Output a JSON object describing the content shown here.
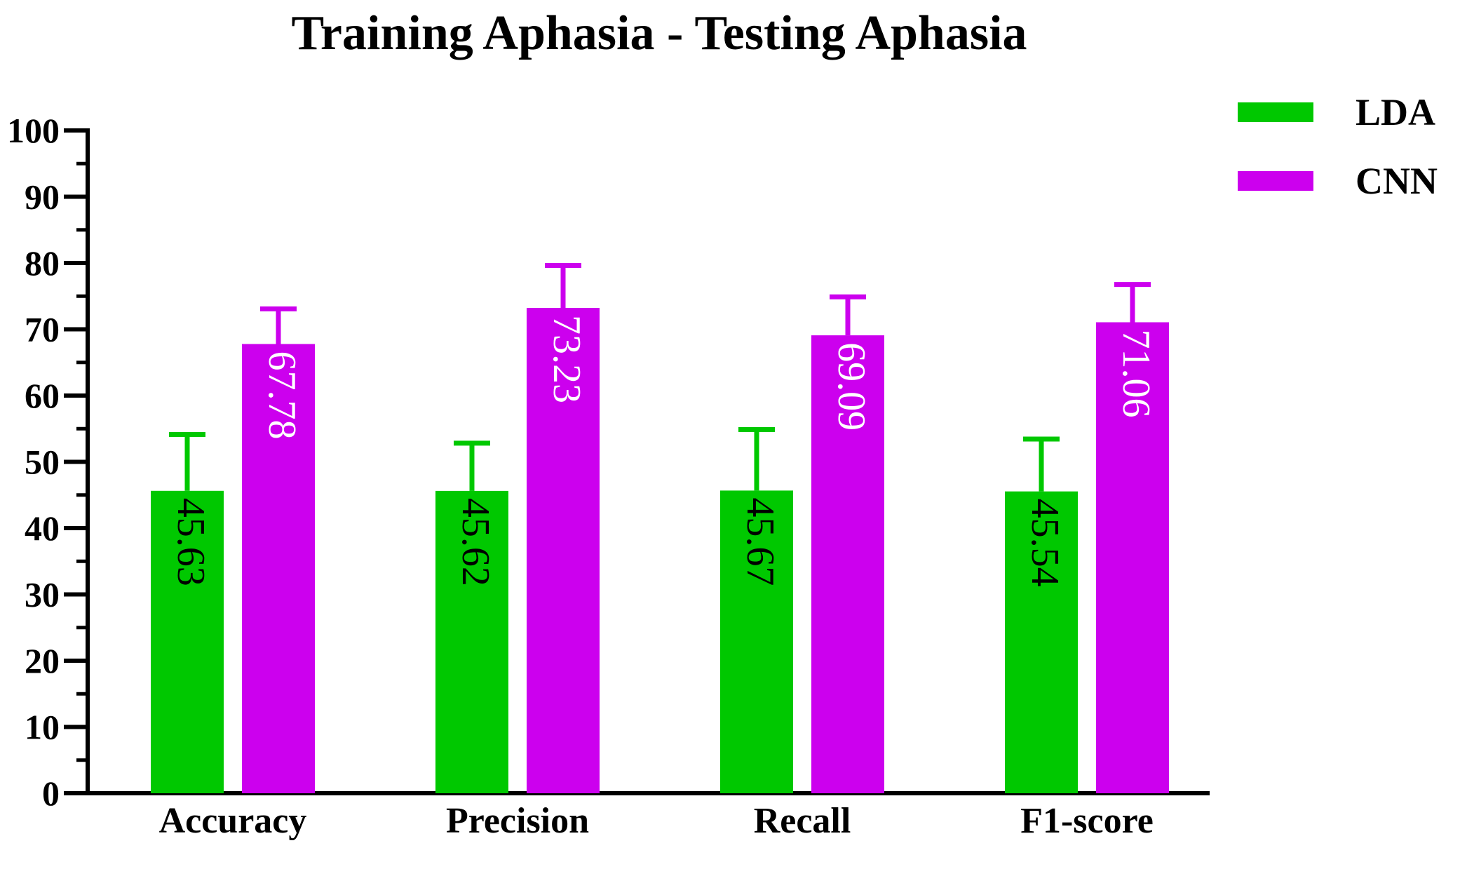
{
  "chart_data": {
    "type": "bar",
    "title": "Training Aphasia - Testing Aphasia",
    "xlabel": "",
    "ylabel": "",
    "categories": [
      "Accuracy",
      "Precision",
      "Recall",
      "F1-score"
    ],
    "ylim": [
      0,
      100
    ],
    "yticks": [
      0,
      10,
      20,
      30,
      40,
      50,
      60,
      70,
      80,
      90,
      100
    ],
    "grid": false,
    "legend_position": "top-right",
    "error_bars": true,
    "series": [
      {
        "name": "LDA",
        "color": "#00c800",
        "label_color": "#000000",
        "values": [
          45.63,
          45.62,
          45.67,
          45.54
        ],
        "labels": [
          "45.63",
          "45.62",
          "45.67",
          "45.54"
        ],
        "errors": [
          8.5,
          7.2,
          9.2,
          7.9
        ]
      },
      {
        "name": "CNN",
        "color": "#cc00ee",
        "label_color": "#ffffff",
        "values": [
          67.78,
          73.23,
          69.09,
          71.06
        ],
        "labels": [
          "67.78",
          "73.23",
          "69.09",
          "71.06"
        ],
        "errors": [
          5.3,
          6.4,
          5.8,
          5.7
        ]
      }
    ]
  }
}
